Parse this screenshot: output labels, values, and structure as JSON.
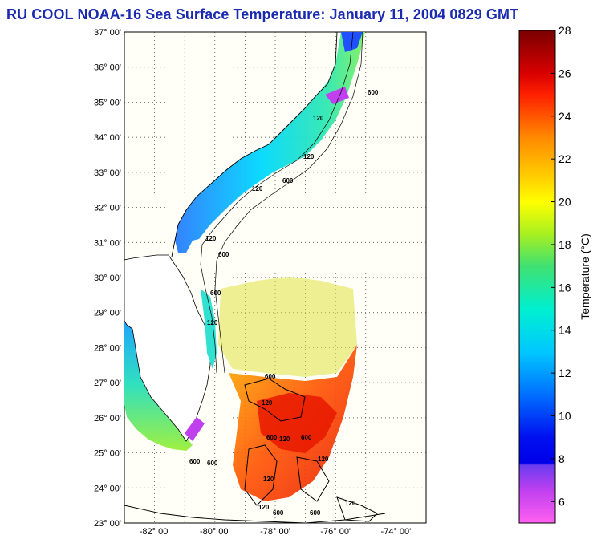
{
  "title": "RU COOL  NOAA-16  Sea Surface Temperature:  January 11, 2004 0829 GMT",
  "map": {
    "lat_labels": [
      "37° 00'",
      "36° 00'",
      "35° 00'",
      "34° 00'",
      "33° 00'",
      "32° 00'",
      "31° 00'",
      "30° 00'",
      "29° 00'",
      "28° 00'",
      "27° 00'",
      "26° 00'",
      "25° 00'",
      "24° 00'",
      "23° 00'"
    ],
    "lon_labels": [
      "-82° 00'",
      "-80° 00'",
      "-78° 00'",
      "-76° 00'",
      "-74° 00'"
    ],
    "contour_labels": [
      "600",
      "120",
      "120",
      "600",
      "120",
      "600",
      "120",
      "600",
      "120",
      "600",
      "120",
      "600",
      "120",
      "600",
      "120",
      "600",
      "600",
      "120",
      "120",
      "600",
      "600",
      "120"
    ]
  },
  "colorbar": {
    "title": "Temperature (°C)",
    "tick_labels": [
      "28",
      "26",
      "24",
      "22",
      "20",
      "18",
      "16",
      "14",
      "12",
      "10",
      "8",
      "6"
    ],
    "range": [
      5,
      28
    ],
    "stops": [
      {
        "value": 28,
        "color": "#7a0000"
      },
      {
        "value": 26,
        "color": "#d80000"
      },
      {
        "value": 25,
        "color": "#ff2000"
      },
      {
        "value": 23,
        "color": "#ff8a00"
      },
      {
        "value": 21,
        "color": "#ffd400"
      },
      {
        "value": 20,
        "color": "#ffff00"
      },
      {
        "value": 18.5,
        "color": "#a8f020"
      },
      {
        "value": 17,
        "color": "#40e070"
      },
      {
        "value": 15,
        "color": "#00f0d0"
      },
      {
        "value": 13,
        "color": "#00c8ff"
      },
      {
        "value": 11,
        "color": "#0070ff"
      },
      {
        "value": 9,
        "color": "#0010f0"
      },
      {
        "value": 7.8,
        "color": "#0000e8"
      },
      {
        "value": 7.7,
        "color": "#6a3cf0"
      },
      {
        "value": 6.5,
        "color": "#c040f0"
      },
      {
        "value": 5,
        "color": "#ff60f0"
      }
    ]
  }
}
